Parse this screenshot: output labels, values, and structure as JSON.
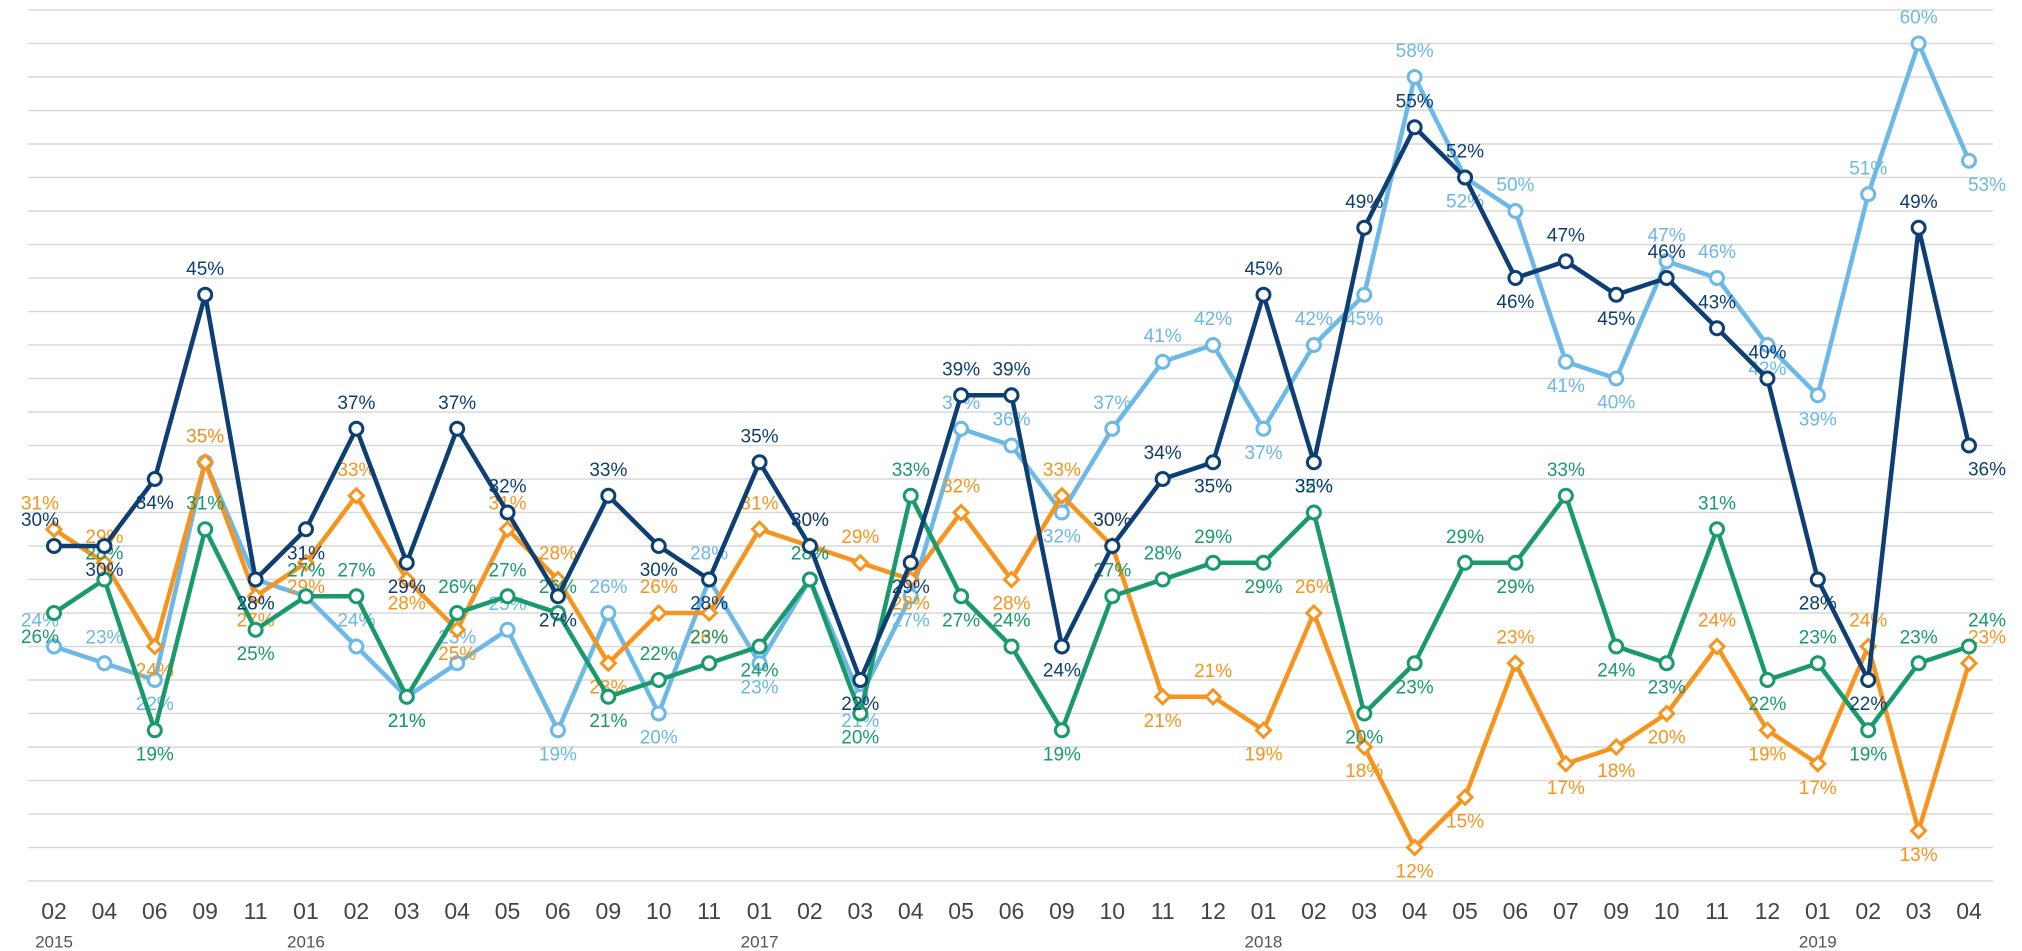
{
  "chart_data": {
    "type": "line",
    "categories": [
      "02",
      "04",
      "06",
      "09",
      "11",
      "01",
      "02",
      "03",
      "04",
      "05",
      "06",
      "09",
      "10",
      "11",
      "01",
      "02",
      "03",
      "04",
      "05",
      "06",
      "09",
      "10",
      "11",
      "12",
      "01",
      "02",
      "03",
      "04",
      "05",
      "06",
      "07",
      "09",
      "10",
      "11",
      "12",
      "01",
      "02",
      "03",
      "04"
    ],
    "category_groups": [
      "2015",
      null,
      null,
      null,
      null,
      "2016",
      null,
      null,
      null,
      null,
      null,
      null,
      null,
      null,
      "2017",
      null,
      null,
      null,
      null,
      null,
      null,
      null,
      null,
      null,
      "2018",
      null,
      null,
      null,
      null,
      null,
      null,
      null,
      null,
      null,
      null,
      "2019",
      null,
      null,
      null
    ],
    "ylim": [
      10,
      62
    ],
    "yticks": [
      10,
      12,
      14,
      16,
      18,
      20,
      22,
      24,
      26,
      28,
      30,
      32,
      34,
      36,
      38,
      40,
      42,
      44,
      46,
      48,
      50,
      52,
      54,
      56,
      58,
      60,
      62
    ],
    "grid": true,
    "series": [
      {
        "color": "#6cb8e6",
        "marker": "circle",
        "values": [
          24,
          23,
          22,
          35,
          28,
          27,
          24,
          21,
          23,
          25,
          19,
          26,
          20,
          28,
          23,
          28,
          21,
          27,
          37,
          36,
          32,
          37,
          41,
          42,
          37,
          42,
          45,
          58,
          52,
          50,
          41,
          40,
          47,
          46,
          42,
          39,
          51,
          60,
          53
        ],
        "value_labels": [
          "24%",
          "23%",
          "22%",
          "35%",
          "28%",
          "27%",
          "24%",
          "21%",
          "23%",
          "25%",
          "19%",
          "26%",
          "20%",
          "28%",
          "23%",
          "28%",
          "21%",
          "27%",
          "37%",
          "36%",
          "32%",
          "37%",
          "41%",
          "42%",
          "37%",
          "42%",
          "45%",
          "58%",
          "52%",
          "50%",
          "41%",
          "40%",
          "47%",
          "46%",
          "42%",
          "39%",
          "51%",
          "60%",
          "53%"
        ]
      },
      {
        "color": "#f7941d",
        "marker": "diamond",
        "values": [
          31,
          29,
          24,
          35,
          27,
          29,
          33,
          28,
          25,
          31,
          28,
          23,
          26,
          26,
          31,
          30,
          29,
          28,
          32,
          28,
          33,
          30,
          21,
          21,
          19,
          26,
          18,
          12,
          15,
          23,
          17,
          18,
          20,
          24,
          19,
          17,
          24,
          13,
          23
        ],
        "value_labels": [
          "31%",
          "29%",
          "24%",
          "35%",
          "27%",
          "29%",
          "33%",
          "28%",
          "25%",
          "31%",
          "28%",
          "23%",
          "26%",
          "26%",
          "31%",
          "30%",
          "29%",
          "28%",
          "32%",
          "28%",
          "33%",
          "30%",
          "21%",
          "21%",
          "19%",
          "26%",
          "18%",
          "12%",
          "15%",
          "23%",
          "17%",
          "18%",
          "20%",
          "24%",
          "19%",
          "17%",
          "24%",
          "13%",
          "23%"
        ]
      },
      {
        "color": "#1a9a6c",
        "marker": "circle",
        "values": [
          26,
          28,
          19,
          31,
          25,
          27,
          27,
          21,
          26,
          27,
          26,
          21,
          22,
          23,
          24,
          28,
          20,
          33,
          27,
          24,
          19,
          27,
          28,
          29,
          29,
          32,
          20,
          23,
          29,
          29,
          33,
          24,
          23,
          31,
          22,
          23,
          19,
          23,
          24
        ],
        "value_labels": [
          "26%",
          "28%",
          "19%",
          "31%",
          "25%",
          "27%",
          "27%",
          "21%",
          "26%",
          "27%",
          "26%",
          "21%",
          "22%",
          "23%",
          "24%",
          "28%",
          "20%",
          "33%",
          "27%",
          "24%",
          "19%",
          "27%",
          "28%",
          "29%",
          "29%",
          "32%",
          "20%",
          "23%",
          "29%",
          "29%",
          "33%",
          "24%",
          "23%",
          "31%",
          "22%",
          "23%",
          "19%",
          "23%",
          "24%"
        ]
      },
      {
        "color": "#0e3f73",
        "marker": "circle",
        "values": [
          30,
          30,
          34,
          45,
          28,
          31,
          37,
          29,
          37,
          32,
          27,
          33,
          30,
          28,
          35,
          30,
          22,
          29,
          39,
          39,
          24,
          30,
          34,
          35,
          45,
          35,
          49,
          55,
          52,
          46,
          47,
          45,
          46,
          43,
          40,
          28,
          22,
          49,
          36
        ],
        "value_labels": [
          "30%",
          "30%",
          "34%",
          "45%",
          "28%",
          "31%",
          "37%",
          "29%",
          "37%",
          "32%",
          "27%",
          "33%",
          "30%",
          "28%",
          "35%",
          "30%",
          "22%",
          "29%",
          "39%",
          "39%",
          "24%",
          "30%",
          "34%",
          "35%",
          "45%",
          "35%",
          "49%",
          "55%",
          "52%",
          "46%",
          "47%",
          "45%",
          "46%",
          "43%",
          "40%",
          "28%",
          "22%",
          "49%",
          "36%"
        ]
      }
    ]
  }
}
